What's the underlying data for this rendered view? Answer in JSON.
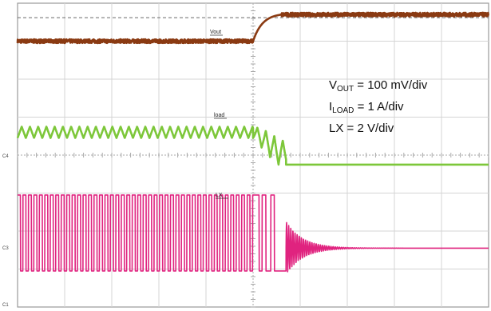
{
  "chart_data": {
    "type": "line",
    "divisions": {
      "x": 10,
      "y": 8
    },
    "grid": true,
    "channel_markers": [
      "C4",
      "C3",
      "C1"
    ],
    "series": [
      {
        "name": "Vout",
        "color": "#8a3a12",
        "segments": [
          {
            "from": 0.0,
            "to": 5.0,
            "level": 7.0,
            "noise": 0.05
          },
          {
            "from": 5.0,
            "to": 5.6,
            "shape": "exp-rise",
            "start": 7.0,
            "end": 7.7
          },
          {
            "from": 5.6,
            "to": 10.0,
            "level": 7.7,
            "noise": 0.05
          }
        ]
      },
      {
        "name": "load",
        "color": "#7dc73a",
        "segments": [
          {
            "from": 0.0,
            "to": 5.0,
            "shape": "triangle",
            "low": 4.45,
            "high": 4.75,
            "period": 0.175
          },
          {
            "from": 5.0,
            "to": 5.7,
            "shape": "triangle-decay",
            "low": 3.75,
            "high": 4.75,
            "period": 0.18
          },
          {
            "from": 5.7,
            "to": 10.0,
            "level": 3.75
          }
        ]
      },
      {
        "name": "LX",
        "color": "#e0237f",
        "segments": [
          {
            "from": 0.0,
            "to": 5.05,
            "shape": "square",
            "low": 0.95,
            "high": 2.95,
            "period": 0.116,
            "duty": 0.55
          },
          {
            "from": 5.05,
            "to": 5.7,
            "shape": "burst",
            "low": 0.95,
            "high": 2.95
          },
          {
            "from": 5.7,
            "to": 10.0,
            "shape": "ring",
            "level": 1.55,
            "amp": 0.7,
            "decay": 0.35
          }
        ]
      }
    ],
    "labels": [
      "Vout",
      "load",
      "LX"
    ],
    "legend": {
      "vout_main": "V",
      "vout_sub": "OUT",
      "vout_rest": " = 100 mV/div",
      "iload_main": "I",
      "iload_sub": "LOAD",
      "iload_rest": " = 1 A/div",
      "lx": "LX = 2 V/div"
    }
  }
}
